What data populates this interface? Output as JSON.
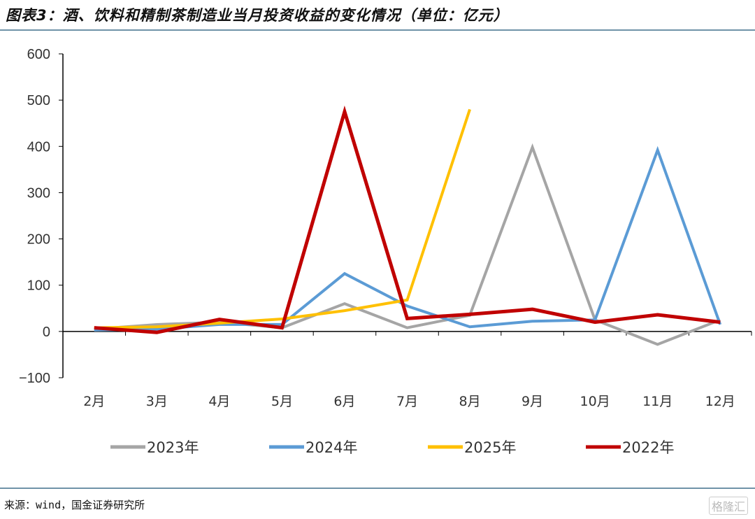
{
  "title": "图表3：酒、饮料和精制茶制造业当月投资收益的变化情况（单位：亿元）",
  "source": "来源：wind，国金证券研究所",
  "watermark": "格隆汇",
  "chart_data": {
    "type": "line",
    "categories": [
      "2月",
      "3月",
      "4月",
      "5月",
      "6月",
      "7月",
      "8月",
      "9月",
      "10月",
      "11月",
      "12月"
    ],
    "ylim": [
      -100,
      600
    ],
    "yticks": [
      -100,
      0,
      100,
      200,
      300,
      400,
      500,
      600
    ],
    "ytick_labels": [
      "−100",
      "0",
      "100",
      "200",
      "300",
      "400",
      "500",
      "600"
    ],
    "grid": false,
    "legend": "bottom",
    "series": [
      {
        "name": "2023年",
        "color": "#a5a5a5",
        "values": [
          5,
          15,
          20,
          8,
          60,
          8,
          35,
          398,
          25,
          -28,
          25
        ]
      },
      {
        "name": "2024年",
        "color": "#5b9bd5",
        "values": [
          3,
          5,
          15,
          15,
          125,
          55,
          10,
          22,
          25,
          392,
          15
        ]
      },
      {
        "name": "2025年",
        "color": "#ffc000",
        "values": [
          8,
          10,
          18,
          27,
          45,
          68,
          480,
          null,
          null,
          null,
          null
        ]
      },
      {
        "name": "2022年",
        "color": "#c00000",
        "values": [
          8,
          -2,
          26,
          8,
          475,
          28,
          37,
          48,
          20,
          36,
          20
        ]
      }
    ]
  }
}
